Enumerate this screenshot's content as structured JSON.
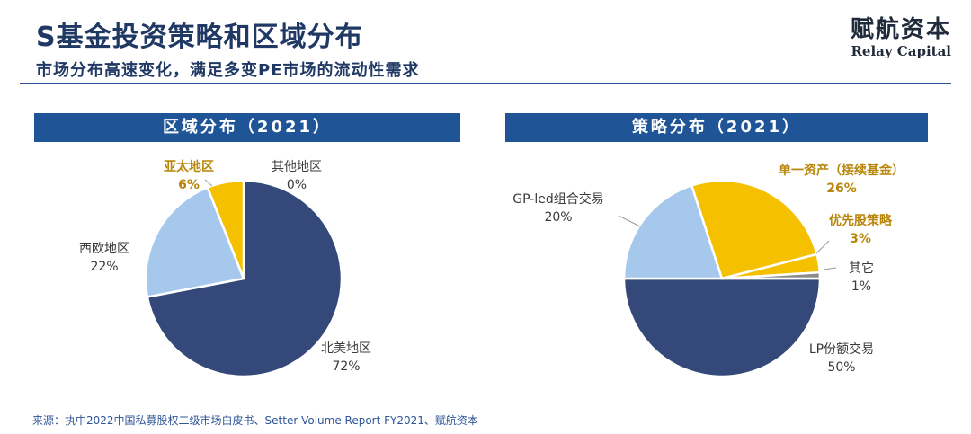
{
  "header": {
    "title": "S基金投资策略和区域分布",
    "subtitle": "市场分布高速变化，满足多变PE市场的流动性需求",
    "logo_cn": "赋航资本",
    "logo_en": "Relay Capital"
  },
  "colors": {
    "navy": "#34497a",
    "light_blue": "#a6c8ed",
    "gold": "#f5c000",
    "gray": "#8c8c8c",
    "header_bar": "#1f5597"
  },
  "chart_data": [
    {
      "type": "pie",
      "title": "区域分布（2021）",
      "start_angle_deg": 0,
      "direction": "clockwise",
      "slices": [
        {
          "label": "北美地区",
          "value_text": "72%",
          "value": 72,
          "color": "#34497a",
          "highlight": false
        },
        {
          "label": "西欧地区",
          "value_text": "22%",
          "value": 22,
          "color": "#a6c8ed",
          "highlight": false
        },
        {
          "label": "亚太地区",
          "value_text": "6%",
          "value": 6,
          "color": "#f5c000",
          "highlight": true
        },
        {
          "label": "其他地区",
          "value_text": "0%",
          "value": 0,
          "color": "#8c8c8c",
          "highlight": false
        }
      ]
    },
    {
      "type": "pie",
      "title": "策略分布（2021）",
      "start_angle_deg": 90,
      "direction": "clockwise",
      "slices": [
        {
          "label": "LP份额交易",
          "value_text": "50%",
          "value": 50,
          "color": "#34497a",
          "highlight": false
        },
        {
          "label": "GP-led组合交易",
          "value_text": "20%",
          "value": 20,
          "color": "#a6c8ed",
          "highlight": false
        },
        {
          "label": "单一资产（接续基金）",
          "value_text": "26%",
          "value": 26,
          "color": "#f5c000",
          "highlight": true
        },
        {
          "label": "优先股策略",
          "value_text": "3%",
          "value": 3,
          "color": "#f5c000",
          "highlight": true
        },
        {
          "label": "其它",
          "value_text": "1%",
          "value": 1,
          "color": "#8c8c8c",
          "highlight": false
        }
      ]
    }
  ],
  "source": "来源：执中2022中国私募股权二级市场白皮书、Setter Volume Report FY2021、赋航资本"
}
